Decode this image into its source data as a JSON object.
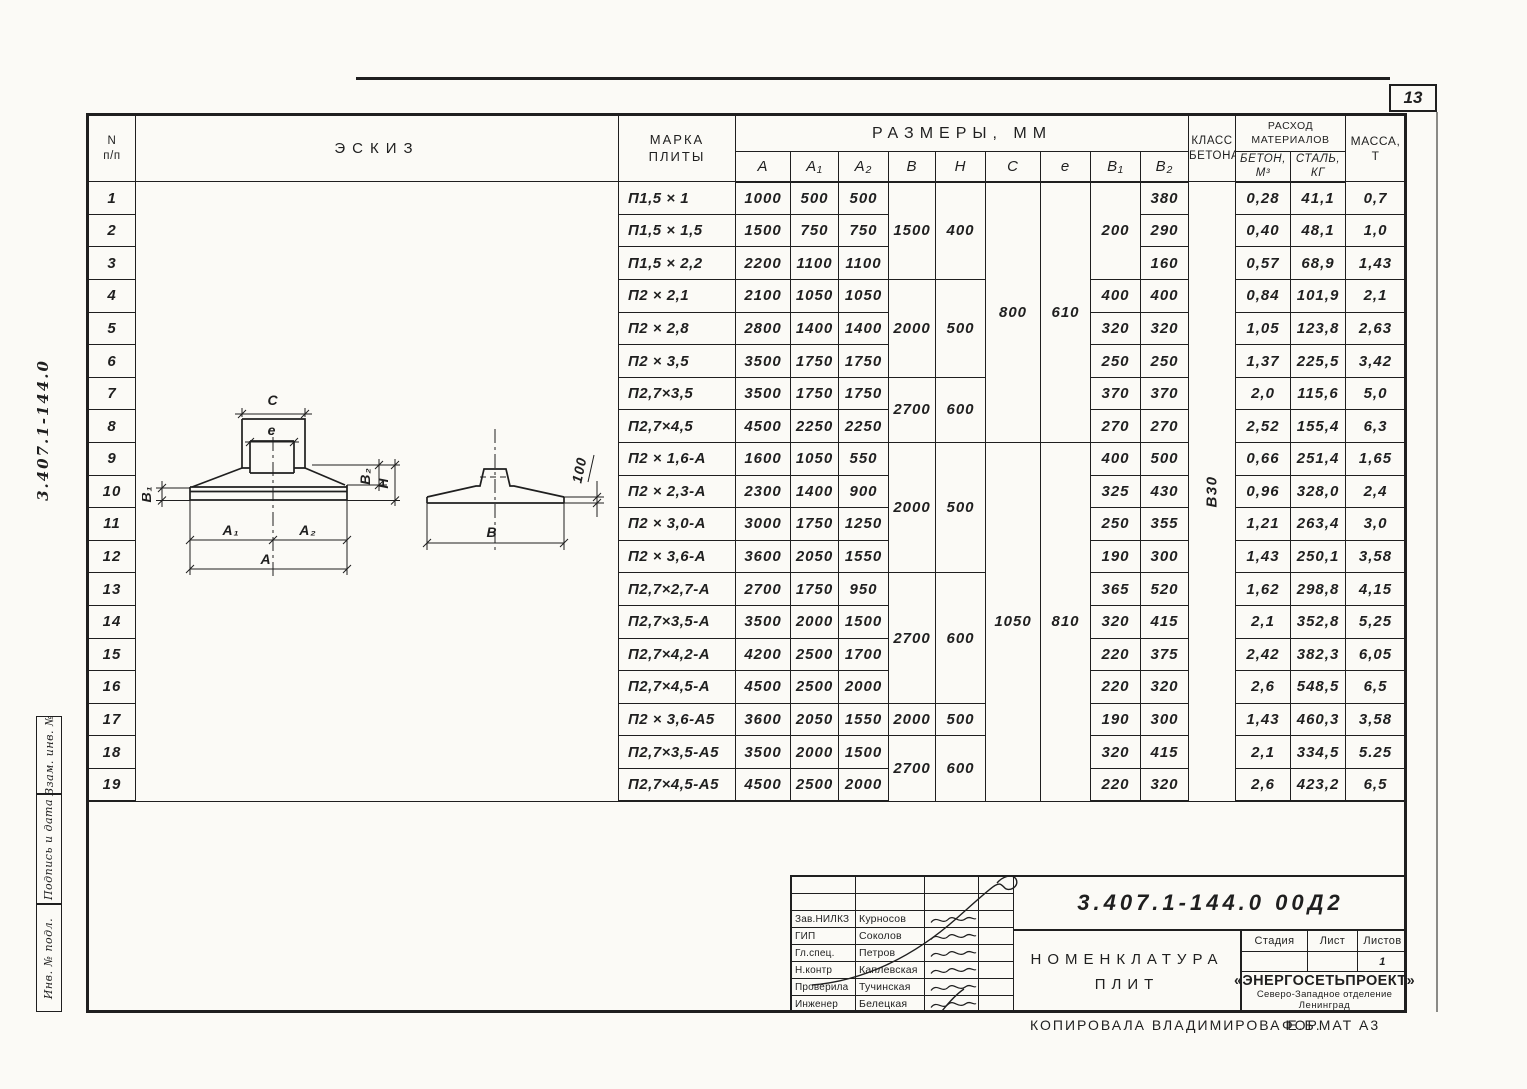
{
  "page_number": "13",
  "side": {
    "doc_number": "3.407.1-144.0",
    "margin_boxes": [
      "Взам. инв. №",
      "Подпись и дата",
      "Инв. № подл."
    ]
  },
  "table": {
    "headers": {
      "num_l1": "N",
      "num_l2": "п/п",
      "sketch": "ЭСКИЗ",
      "mark_l1": "МАРКА",
      "mark_l2": "ПЛИТЫ",
      "sizes": "РАЗМЕРЫ, ММ",
      "class_l1": "КЛАСС",
      "class_l2": "БЕТОНА",
      "mat_l1": "РАСХОД",
      "mat_l2": "МАТЕРИАЛОВ",
      "beton_l1": "БЕТОН,",
      "beton_l2": "М³",
      "stal_l1": "СТАЛЬ,",
      "stal_l2": "КГ",
      "mass_l1": "МАССА,",
      "mass_l2": "Т"
    },
    "size_cols": [
      "А",
      "А₁",
      "А₂",
      "В",
      "Н",
      "С",
      "е",
      "В₁",
      "В₂"
    ],
    "concrete_class": "В30",
    "rows": [
      {
        "n": "1",
        "mark": "П1,5 × 1",
        "A": "1000",
        "A1": "500",
        "A2": "500",
        "B": "1500",
        "H": "400",
        "C": "800",
        "e": "610",
        "B1": "200",
        "B2": "380",
        "beton": "0,28",
        "stal": "41,1",
        "massa": "0,7"
      },
      {
        "n": "2",
        "mark": "П1,5 × 1,5",
        "A": "1500",
        "A1": "750",
        "A2": "750",
        "B2": "290",
        "beton": "0,40",
        "stal": "48,1",
        "massa": "1,0"
      },
      {
        "n": "3",
        "mark": "П1,5 × 2,2",
        "A": "2200",
        "A1": "1100",
        "A2": "1100",
        "B2": "160",
        "beton": "0,57",
        "stal": "68,9",
        "massa": "1,43"
      },
      {
        "n": "4",
        "mark": "П2 × 2,1",
        "A": "2100",
        "A1": "1050",
        "A2": "1050",
        "B": "2000",
        "H": "500",
        "B1": "400",
        "B2": "400",
        "beton": "0,84",
        "stal": "101,9",
        "massa": "2,1"
      },
      {
        "n": "5",
        "mark": "П2 × 2,8",
        "A": "2800",
        "A1": "1400",
        "A2": "1400",
        "B1": "320",
        "B2": "320",
        "beton": "1,05",
        "stal": "123,8",
        "massa": "2,63"
      },
      {
        "n": "6",
        "mark": "П2 × 3,5",
        "A": "3500",
        "A1": "1750",
        "A2": "1750",
        "B1": "250",
        "B2": "250",
        "beton": "1,37",
        "stal": "225,5",
        "massa": "3,42"
      },
      {
        "n": "7",
        "mark": "П2,7×3,5",
        "A": "3500",
        "A1": "1750",
        "A2": "1750",
        "B": "2700",
        "H": "600",
        "B1": "370",
        "B2": "370",
        "beton": "2,0",
        "stal": "115,6",
        "massa": "5,0"
      },
      {
        "n": "8",
        "mark": "П2,7×4,5",
        "A": "4500",
        "A1": "2250",
        "A2": "2250",
        "B1": "270",
        "B2": "270",
        "beton": "2,52",
        "stal": "155,4",
        "massa": "6,3"
      },
      {
        "n": "9",
        "mark": "П2 × 1,6-А",
        "A": "1600",
        "A1": "1050",
        "A2": "550",
        "B": "2000",
        "H": "500",
        "C": "1050",
        "e": "810",
        "B1": "400",
        "B2": "500",
        "beton": "0,66",
        "stal": "251,4",
        "massa": "1,65"
      },
      {
        "n": "10",
        "mark": "П2 × 2,3-А",
        "A": "2300",
        "A1": "1400",
        "A2": "900",
        "B1": "325",
        "B2": "430",
        "beton": "0,96",
        "stal": "328,0",
        "massa": "2,4"
      },
      {
        "n": "11",
        "mark": "П2 × 3,0-А",
        "A": "3000",
        "A1": "1750",
        "A2": "1250",
        "B1": "250",
        "B2": "355",
        "beton": "1,21",
        "stal": "263,4",
        "massa": "3,0"
      },
      {
        "n": "12",
        "mark": "П2 × 3,6-А",
        "A": "3600",
        "A1": "2050",
        "A2": "1550",
        "B1": "190",
        "B2": "300",
        "beton": "1,43",
        "stal": "250,1",
        "massa": "3,58"
      },
      {
        "n": "13",
        "mark": "П2,7×2,7-А",
        "A": "2700",
        "A1": "1750",
        "A2": "950",
        "B": "2700",
        "H": "600",
        "B1": "365",
        "B2": "520",
        "beton": "1,62",
        "stal": "298,8",
        "massa": "4,15"
      },
      {
        "n": "14",
        "mark": "П2,7×3,5-А",
        "A": "3500",
        "A1": "2000",
        "A2": "1500",
        "B1": "320",
        "B2": "415",
        "beton": "2,1",
        "stal": "352,8",
        "massa": "5,25"
      },
      {
        "n": "15",
        "mark": "П2,7×4,2-А",
        "A": "4200",
        "A1": "2500",
        "A2": "1700",
        "B1": "220",
        "B2": "375",
        "beton": "2,42",
        "stal": "382,3",
        "massa": "6,05"
      },
      {
        "n": "16",
        "mark": "П2,7×4,5-А",
        "A": "4500",
        "A1": "2500",
        "A2": "2000",
        "B1": "220",
        "B2": "320",
        "beton": "2,6",
        "stal": "548,5",
        "massa": "6,5"
      },
      {
        "n": "17",
        "mark": "П2 × 3,6-А5",
        "A": "3600",
        "A1": "2050",
        "A2": "1550",
        "B": "2000",
        "H": "500",
        "B1": "190",
        "B2": "300",
        "beton": "1,43",
        "stal": "460,3",
        "massa": "3,58"
      },
      {
        "n": "18",
        "mark": "П2,7×3,5-А5",
        "A": "3500",
        "A1": "2000",
        "A2": "1500",
        "B": "2700",
        "H": "600",
        "B1": "320",
        "B2": "415",
        "beton": "2,1",
        "stal": "334,5",
        "massa": "5.25"
      },
      {
        "n": "19",
        "mark": "П2,7×4,5-А5",
        "A": "4500",
        "A1": "2500",
        "A2": "2000",
        "B1": "220",
        "B2": "320",
        "beton": "2,6",
        "stal": "423,2",
        "massa": "6,5"
      }
    ]
  },
  "sketch": {
    "labels": {
      "C": "С",
      "e": "е",
      "B1": "В₁",
      "B2": "В₂",
      "H": "Н",
      "A1": "А₁",
      "A2": "А₂",
      "A": "А",
      "B": "В",
      "h100": "100"
    }
  },
  "titleblock": {
    "doc_number": "3.407.1-144.0  00Д2",
    "title_l1": "НОМЕНКЛАТУРА",
    "title_l2": "ПЛИТ",
    "stage_label": "Стадия",
    "sheet_label": "Лист",
    "sheets_label": "Листов",
    "sheets_value": "1",
    "org_name": "«ЭНЕРГОСЕТЬПРОЕКТ»",
    "org_line2": "Северо-Западное отделение",
    "org_line3": "Ленинград",
    "roles": [
      {
        "role": "Зав.НИЛКЗ",
        "name": "Курносов"
      },
      {
        "role": "ГИП",
        "name": "Соколов"
      },
      {
        "role": "Гл.спец.",
        "name": "Петров"
      },
      {
        "role": "Н.контр",
        "name": "Каплевская"
      },
      {
        "role": "Проверила",
        "name": "Тучинская"
      },
      {
        "role": "Инженер",
        "name": "Белецкая"
      }
    ]
  },
  "footer": {
    "copied": "КОПИРОВАЛА  ВЛАДИМИРОВА Е.Б.",
    "format": "ФОРМАТ А3"
  }
}
